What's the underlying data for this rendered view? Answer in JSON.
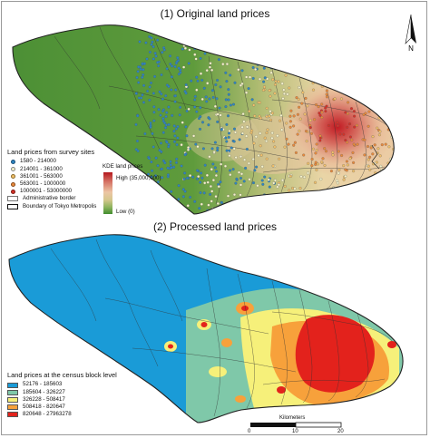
{
  "titles": {
    "top": "(1) Original land prices",
    "bottom": "(2) Processed land prices"
  },
  "survey_legend": {
    "title": "Land prices from survey sites",
    "items": [
      {
        "label": "1580 - 214000",
        "color": "#2e86c1"
      },
      {
        "label": "214001 - 361000",
        "color": "#f5f2c9"
      },
      {
        "label": "361001 - 563000",
        "color": "#f2c16b"
      },
      {
        "label": "563001 - 1000000",
        "color": "#e98a3c"
      },
      {
        "label": "1000001 - 53000000",
        "color": "#d73027"
      }
    ],
    "admin_border": "Administrative border",
    "tokyo_boundary": "Boundary of Tokyo Metropolis"
  },
  "kde_legend": {
    "title": "KDE land prices",
    "high": "High (35,000,000)",
    "low": "Low (0)"
  },
  "census_legend": {
    "title": "Land prices at the census block level",
    "items": [
      {
        "label": "52176 - 185603",
        "color": "#1a9bd7"
      },
      {
        "label": "185604 - 326227",
        "color": "#7fc8a9"
      },
      {
        "label": "326228 - 508417",
        "color": "#f6f07a"
      },
      {
        "label": "508418 - 820647",
        "color": "#f7a13b"
      },
      {
        "label": "820648 - 27963278",
        "color": "#e3221c"
      }
    ]
  },
  "scale_bar": {
    "title": "Kilometers",
    "ticks": [
      "0",
      "10",
      "20"
    ]
  },
  "north_arrow": "N"
}
